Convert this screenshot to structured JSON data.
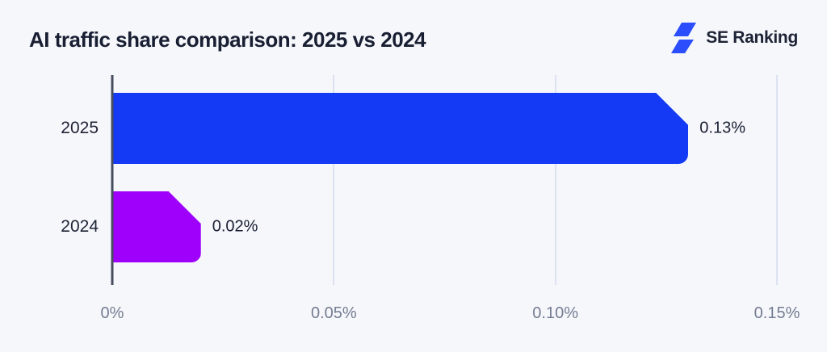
{
  "header": {
    "title": "AI traffic share comparison: 2025 vs 2024",
    "brand_name": "SE Ranking"
  },
  "chart_data": {
    "type": "bar",
    "orientation": "horizontal",
    "title": "AI traffic share comparison: 2025 vs 2024",
    "categories": [
      "2025",
      "2024"
    ],
    "values": [
      0.13,
      0.02
    ],
    "value_labels": [
      "0.13%",
      "0.02%"
    ],
    "bar_colors": [
      "#143AF5",
      "#9E00FB"
    ],
    "xlim": [
      0,
      0.15
    ],
    "x_ticks": [
      {
        "value": 0,
        "label": "0%"
      },
      {
        "value": 0.05,
        "label": "0.05%"
      },
      {
        "value": 0.1,
        "label": "0.10%"
      },
      {
        "value": 0.15,
        "label": "0.15%"
      }
    ],
    "grid": "vertical-gridlines",
    "legend": "none"
  },
  "colors": {
    "background": "#F6F7FB",
    "title_text": "#191F33",
    "axis_line": "#454D5F",
    "gridline": "#DCE2F0",
    "tick_label": "#747D92",
    "bar_2025": "#143AF5",
    "bar_2024": "#9E00FB",
    "brand_blue": "#2B4DFC"
  }
}
